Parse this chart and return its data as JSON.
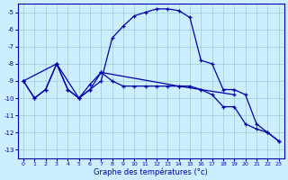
{
  "background_color": "#cceeff",
  "grid_color": "#99cccc",
  "line_color": "#0000aa",
  "xlabel": "Graphe des températures (°c)",
  "ylim": [
    -13.5,
    -4.5
  ],
  "xlim": [
    -0.5,
    23.5
  ],
  "yticks": [
    -13,
    -12,
    -11,
    -10,
    -9,
    -8,
    -7,
    -6,
    -5
  ],
  "xticks": [
    0,
    1,
    2,
    3,
    4,
    5,
    6,
    7,
    8,
    9,
    10,
    11,
    12,
    13,
    14,
    15,
    16,
    17,
    18,
    19,
    20,
    21,
    22,
    23
  ],
  "series": [
    {
      "x": [
        0,
        1,
        2,
        3,
        4,
        5,
        6,
        7,
        8,
        9,
        10,
        11,
        12,
        13,
        14,
        15,
        16,
        17,
        18,
        19,
        20,
        21,
        22,
        23
      ],
      "y": [
        -9.0,
        -10.0,
        -9.5,
        -8.0,
        -9.5,
        -10.0,
        -9.5,
        -9.0,
        -6.5,
        -5.8,
        -5.2,
        -5.0,
        -4.8,
        -4.8,
        -4.9,
        -5.3,
        -7.8,
        -8.0,
        -9.5,
        -9.5,
        -9.8,
        -11.5,
        -12.0,
        -12.5
      ]
    },
    {
      "x": [
        0,
        1,
        2,
        3,
        4,
        5,
        6,
        7,
        8,
        9,
        10,
        11,
        12,
        13,
        14,
        15,
        16,
        17,
        18,
        19,
        20,
        21,
        22,
        23
      ],
      "y": [
        -9.0,
        -10.0,
        -9.5,
        -8.0,
        -9.5,
        -10.0,
        -9.2,
        -8.5,
        -9.0,
        -9.3,
        -9.3,
        -9.3,
        -9.3,
        -9.3,
        -9.3,
        -9.3,
        -9.5,
        -9.8,
        -10.5,
        -10.5,
        -11.5,
        -11.8,
        -12.0,
        -12.5
      ]
    },
    {
      "x": [
        0,
        3,
        5,
        6,
        7,
        14,
        19
      ],
      "y": [
        -9.0,
        -8.0,
        -10.0,
        -9.5,
        -8.5,
        -9.3,
        -9.8
      ]
    }
  ]
}
